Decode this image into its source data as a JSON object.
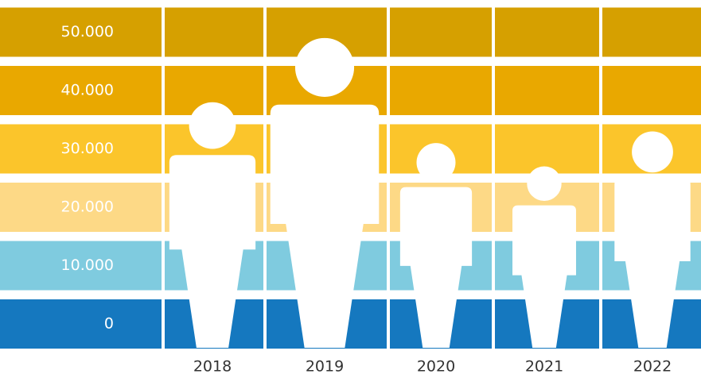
{
  "chart_data": {
    "type": "pictogram",
    "categories": [
      "2018",
      "2019",
      "2020",
      "2021",
      "2022"
    ],
    "values": [
      38000,
      49000,
      31000,
      27000,
      33000
    ],
    "ylim": [
      0,
      50000
    ],
    "yticks": [
      0,
      {
        "value": 10000,
        "label": "10.000"
      },
      {
        "value": 20000,
        "label": "20.000"
      },
      {
        "value": 30000,
        "label": "30.000"
      },
      {
        "value": 40000,
        "label": "40.000"
      },
      {
        "value": 50000,
        "label": "50.000"
      }
    ],
    "band_colors": [
      "#1578bf",
      "#7fcbdf",
      "#fdd986",
      "#fbc52b",
      "#e9a800",
      "#d6a000"
    ],
    "icon_color": "#ffffff"
  }
}
